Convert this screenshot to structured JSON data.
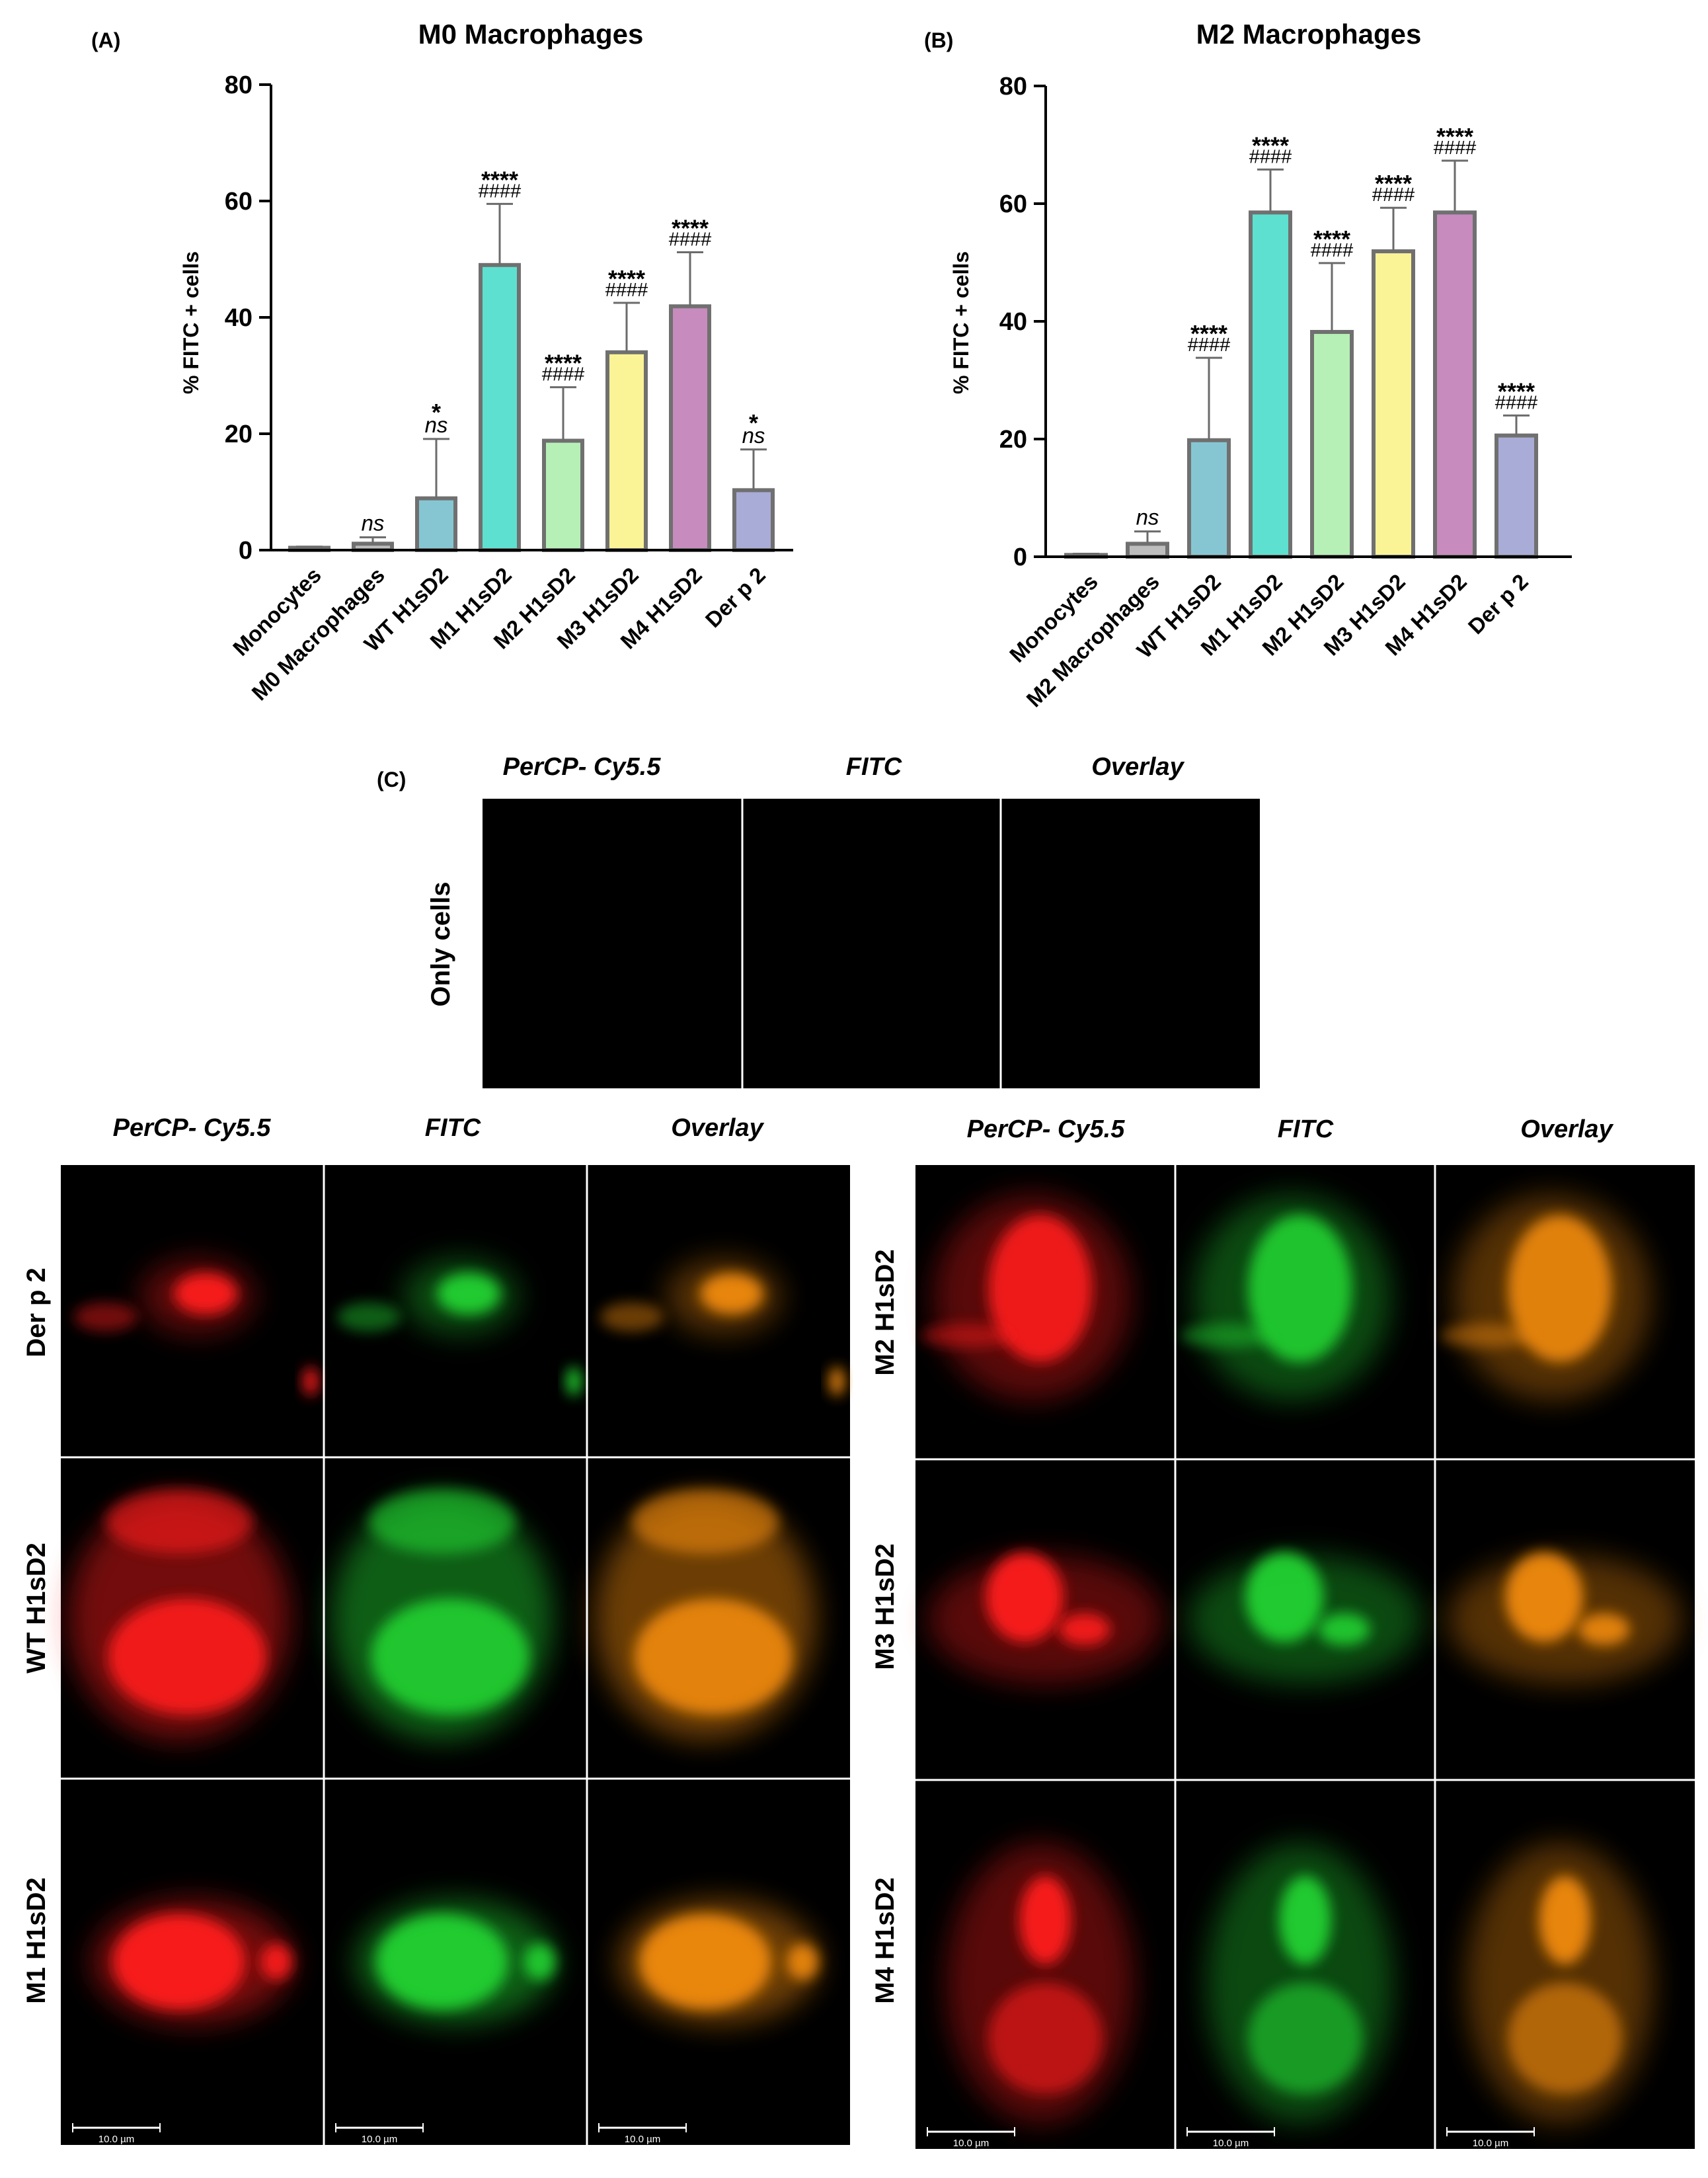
{
  "chart_data": [
    {
      "type": "bar",
      "panel": "(A)",
      "title": "M0 Macrophages",
      "ylabel": "% FITC + cells",
      "xlabel": "",
      "ylim": [
        0,
        80
      ],
      "yticks": [
        0,
        20,
        40,
        60,
        80
      ],
      "categories": [
        "Monocytes",
        "M0 Macrophages",
        "WT H1sD2",
        "M1 H1sD2",
        "M2 H1sD2",
        "M3 H1sD2",
        "M4 H1sD2",
        "Der p 2"
      ],
      "values": [
        0.4,
        1.1,
        8.9,
        49.0,
        18.8,
        34.0,
        41.9,
        10.3
      ],
      "errors": [
        0.2,
        1.1,
        10.2,
        10.5,
        9.2,
        8.5,
        9.3,
        7.0
      ],
      "colors": [
        "#cfcfcf",
        "#bdbdbd",
        "#86c6d3",
        "#5ee0d0",
        "#b6f0b6",
        "#fbf497",
        "#c78bbd",
        "#a9acd6"
      ],
      "sig_stars": [
        "",
        "",
        "*",
        "****",
        "****",
        "****",
        "****",
        "*"
      ],
      "sig_hash": [
        "",
        "ns",
        "ns",
        "####",
        "####",
        "####",
        "####",
        "ns"
      ],
      "grid": false,
      "legend": "none"
    },
    {
      "type": "bar",
      "panel": "(B)",
      "title": "M2 Macrophages",
      "ylabel": "% FITC + cells",
      "xlabel": "",
      "ylim": [
        0,
        80
      ],
      "yticks": [
        0,
        20,
        40,
        60,
        80
      ],
      "categories": [
        "Monocytes",
        "M2 Macrophages",
        "WT H1sD2",
        "M1 H1sD2",
        "M2 H1sD2",
        "M3 H1sD2",
        "M4 H1sD2",
        "Der p 2"
      ],
      "values": [
        0.3,
        2.2,
        19.8,
        58.5,
        38.2,
        51.9,
        58.5,
        20.6
      ],
      "errors": [
        0.2,
        2.1,
        14.0,
        7.3,
        11.7,
        7.4,
        8.8,
        3.4
      ],
      "colors": [
        "#cfcfcf",
        "#bdbdbd",
        "#86c6d3",
        "#5ee0d0",
        "#b6f0b6",
        "#fbf497",
        "#c78bbd",
        "#a9acd6"
      ],
      "sig_stars": [
        "",
        "",
        "****",
        "****",
        "****",
        "****",
        "****",
        "****"
      ],
      "sig_hash": [
        "",
        "ns",
        "####",
        "####",
        "####",
        "####",
        "####",
        "####"
      ],
      "grid": false,
      "legend": "none"
    }
  ],
  "micrographs": {
    "panel": "(C)",
    "channels": [
      "PerCP- Cy5.5",
      "FITC",
      "Overlay"
    ],
    "control_row": "Only cells",
    "left_rows": [
      "Der p 2",
      "WT H1sD2",
      "M1 H1sD2"
    ],
    "right_rows": [
      "M2 H1sD2",
      "M3 H1sD2",
      "M4 H1sD2"
    ],
    "scale_bar": "10.0 µm",
    "colors": {
      "red_channel": "#ff1a1a",
      "green_channel": "#22d133",
      "overlay": "#f08a10",
      "background": "#000000"
    }
  }
}
